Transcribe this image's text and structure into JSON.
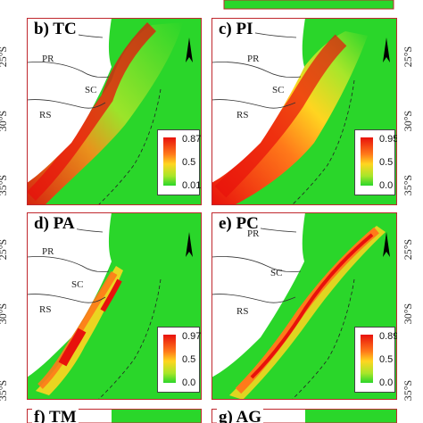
{
  "panels": [
    {
      "id": "b",
      "label": "b) TC",
      "legend_max": "0.87",
      "legend_mid": "0.5",
      "legend_min": "0.01"
    },
    {
      "id": "c",
      "label": "c) PI",
      "legend_max": "0.95",
      "legend_mid": "0.5",
      "legend_min": "0.0"
    },
    {
      "id": "d",
      "label": "d) PA",
      "legend_max": "0.97",
      "legend_mid": "0.5",
      "legend_min": "0.0"
    },
    {
      "id": "e",
      "label": "e) PC",
      "legend_max": "0.89",
      "legend_mid": "0.5",
      "legend_min": "0.0"
    },
    {
      "id": "f",
      "label": "f) TM"
    },
    {
      "id": "g",
      "label": "g) AG"
    }
  ],
  "states": {
    "pr": "PR",
    "sc": "SC",
    "rs": "RS"
  },
  "latitudes": {
    "l25": "25°S",
    "l30": "30°S",
    "l35": "35°S"
  },
  "colors": {
    "high": "#e8110c",
    "mid": "#ffd520",
    "low": "#2ad62a",
    "land": "#ffffff",
    "frame": "#c0282e"
  }
}
